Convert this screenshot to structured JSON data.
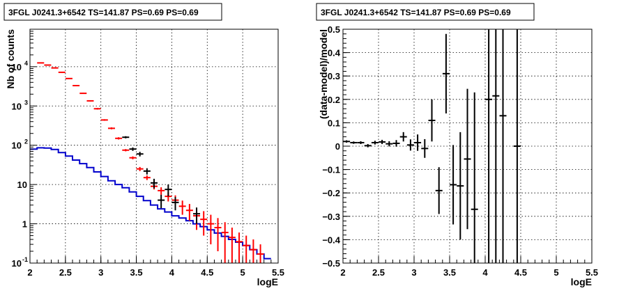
{
  "chart_data": [
    {
      "type": "line",
      "title": "3FGL J0241.3+6542 TS=141.87 PS=0.69 PS=0.69",
      "xlabel": "logE",
      "ylabel": "Nb of counts",
      "xlim": [
        2,
        5.5
      ],
      "ylim": [
        0.1,
        90000
      ],
      "yscale": "log",
      "grid": true,
      "xticks": [
        "2",
        "2.5",
        "3",
        "3.5",
        "4",
        "4.5",
        "5",
        "5.5"
      ],
      "yticks": [
        {
          "value": 0.1,
          "label": "10",
          "exp": "-1"
        },
        {
          "value": 1,
          "label": "1",
          "exp": ""
        },
        {
          "value": 10,
          "label": "10",
          "exp": ""
        },
        {
          "value": 100,
          "label": "10",
          "exp": "2"
        },
        {
          "value": 1000,
          "label": "10",
          "exp": "3"
        },
        {
          "value": 10000,
          "label": "10",
          "exp": "4"
        }
      ],
      "bin_edges": [
        2.0,
        2.1,
        2.2,
        2.3,
        2.4,
        2.5,
        2.6,
        2.7,
        2.8,
        2.9,
        3.0,
        3.1,
        3.2,
        3.3,
        3.4,
        3.5,
        3.6,
        3.7,
        3.8,
        3.9,
        4.0,
        4.1,
        4.2,
        4.3,
        4.4,
        4.5,
        4.6,
        4.7,
        4.8,
        4.9,
        5.0,
        5.1,
        5.2,
        5.3,
        5.4
      ],
      "series": [
        {
          "name": "",
          "kind": "step",
          "color": "#0000cc",
          "values": [
            80,
            86,
            85,
            78,
            65,
            53,
            42,
            34,
            27,
            21,
            16,
            12.5,
            10,
            8.3,
            6.5,
            5.0,
            3.9,
            3.0,
            2.4,
            2.0,
            1.6,
            1.4,
            1.2,
            1.0,
            0.85,
            0.7,
            0.58,
            0.48,
            0.4,
            0.34,
            0.28,
            0.22,
            0.17,
            0.13
          ]
        },
        {
          "name": "",
          "kind": "points",
          "color": "#ff0000",
          "x": [
            2.15,
            2.25,
            2.35,
            2.45,
            2.55,
            2.65,
            2.75,
            2.85,
            2.95,
            3.05,
            3.15,
            3.25,
            3.35,
            3.45,
            3.55,
            3.65,
            3.75,
            3.85,
            3.95,
            4.05,
            4.15,
            4.25,
            4.35,
            4.45,
            4.55,
            4.65,
            4.75,
            4.85,
            4.95,
            5.05,
            5.15,
            5.25
          ],
          "y": [
            12500,
            11000,
            9300,
            7200,
            5000,
            3300,
            2100,
            1350,
            850,
            440,
            270,
            150,
            75,
            48,
            25,
            15,
            9,
            7,
            5,
            4,
            2.8,
            2.2,
            1.6,
            1.3,
            1.0,
            0.8,
            0.6,
            0.45,
            0.35,
            0.28,
            0.22,
            0.17
          ],
          "ylo": [
            12200,
            10700,
            9000,
            7000,
            4850,
            3200,
            2030,
            1300,
            810,
            420,
            255,
            140,
            70,
            44,
            22,
            13,
            7.5,
            5.5,
            3.7,
            2.7,
            1.7,
            1.2,
            0.7,
            0.5,
            0.3,
            0.2,
            0.1,
            0.1,
            0.1,
            0.1,
            0.1,
            0.1
          ],
          "yhi": [
            12800,
            11300,
            9600,
            7400,
            5150,
            3400,
            2170,
            1400,
            890,
            460,
            285,
            160,
            80,
            52,
            28,
            17,
            10.5,
            8.5,
            6.3,
            5.3,
            3.9,
            3.2,
            2.5,
            2.1,
            1.7,
            1.4,
            1.1,
            0.8,
            0.6,
            0.5,
            0.4,
            0.3
          ]
        },
        {
          "name": "",
          "kind": "points",
          "color": "#000000",
          "x": [
            3.35,
            3.45,
            3.55,
            3.65,
            3.75,
            3.85,
            3.95,
            4.05,
            4.35
          ],
          "y": [
            160,
            80,
            60,
            22,
            11,
            4,
            7.5,
            3.5,
            1.8
          ],
          "ylo": [
            150,
            72,
            52,
            18,
            8,
            2.5,
            5,
            2.2,
            1.0
          ],
          "yhi": [
            170,
            88,
            68,
            26,
            14,
            5.5,
            10,
            4.8,
            2.6
          ]
        }
      ]
    },
    {
      "type": "scatter",
      "title": "3FGL J0241.3+6542 TS=141.87 PS=0.69 PS=0.69",
      "xlabel": "logE",
      "ylabel": "(data-model)/model",
      "xlim": [
        2,
        5.5
      ],
      "ylim": [
        -0.5,
        0.5
      ],
      "grid": true,
      "xticks": [
        "2",
        "2.5",
        "3",
        "3.5",
        "4",
        "4.5",
        "5",
        "5.5"
      ],
      "yticks": [
        "-0.5",
        "-0.4",
        "-0.3",
        "-0.2",
        "-0.1",
        "0",
        "0.1",
        "0.2",
        "0.3",
        "0.4",
        "0.5"
      ],
      "series": [
        {
          "name": "",
          "color": "#000000",
          "x": [
            2.05,
            2.15,
            2.25,
            2.35,
            2.45,
            2.55,
            2.65,
            2.75,
            2.85,
            2.95,
            3.05,
            3.15,
            3.25,
            3.35,
            3.45,
            3.55,
            3.65,
            3.75,
            3.85,
            4.05,
            4.15,
            4.25,
            4.45
          ],
          "y": [
            0.02,
            0.015,
            0.015,
            0.002,
            0.015,
            0.018,
            0.01,
            0.012,
            0.04,
            0.005,
            0.015,
            -0.01,
            0.11,
            -0.19,
            0.31,
            -0.165,
            -0.17,
            -0.055,
            -0.27,
            0.2,
            0.215,
            0.13,
            0.0
          ],
          "err": [
            0.005,
            0.005,
            0.006,
            0.007,
            0.008,
            0.009,
            0.011,
            0.014,
            0.02,
            0.024,
            0.035,
            0.04,
            0.09,
            0.1,
            0.17,
            0.17,
            0.23,
            0.3,
            0.5,
            0.9,
            0.9,
            0.9,
            0.9
          ]
        }
      ]
    }
  ]
}
